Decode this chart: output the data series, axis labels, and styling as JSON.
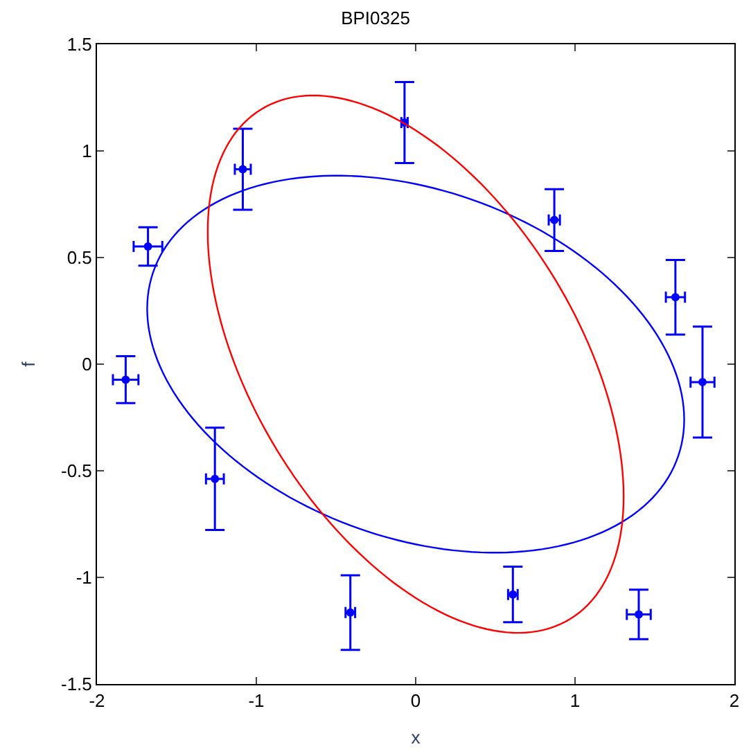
{
  "chart_data": {
    "type": "scatter",
    "title": "BPI0325",
    "xlabel": "x",
    "ylabel": "f",
    "xlim": [
      -2,
      2
    ],
    "xticks": [
      -2,
      -1,
      0,
      1,
      2
    ],
    "ylim": [
      -1.5,
      1.5
    ],
    "yticks": [
      -1.5,
      -1,
      -0.5,
      0,
      0.5,
      1,
      1.5
    ],
    "grid": false,
    "legend": false,
    "series": [
      {
        "color": "#0000ff",
        "x": [
          -1.82,
          -1.68,
          -1.085,
          -0.07,
          0.87,
          1.63,
          1.8,
          -1.26,
          -0.41,
          0.61,
          1.4
        ],
        "values": [
          -0.073,
          0.552,
          0.914,
          1.133,
          0.676,
          0.314,
          -0.084,
          -0.538,
          -1.165,
          -1.08,
          -1.174
        ],
        "errors": [
          0.11,
          0.09,
          0.19,
          0.19,
          0.145,
          0.175,
          0.26,
          0.24,
          0.175,
          0.13,
          0.116
        ],
        "xerrors": [
          0.08,
          0.09,
          0.05,
          0.02,
          0.035,
          0.06,
          0.075,
          0.056,
          0.03,
          0.03,
          0.075
        ]
      }
    ]
  }
}
